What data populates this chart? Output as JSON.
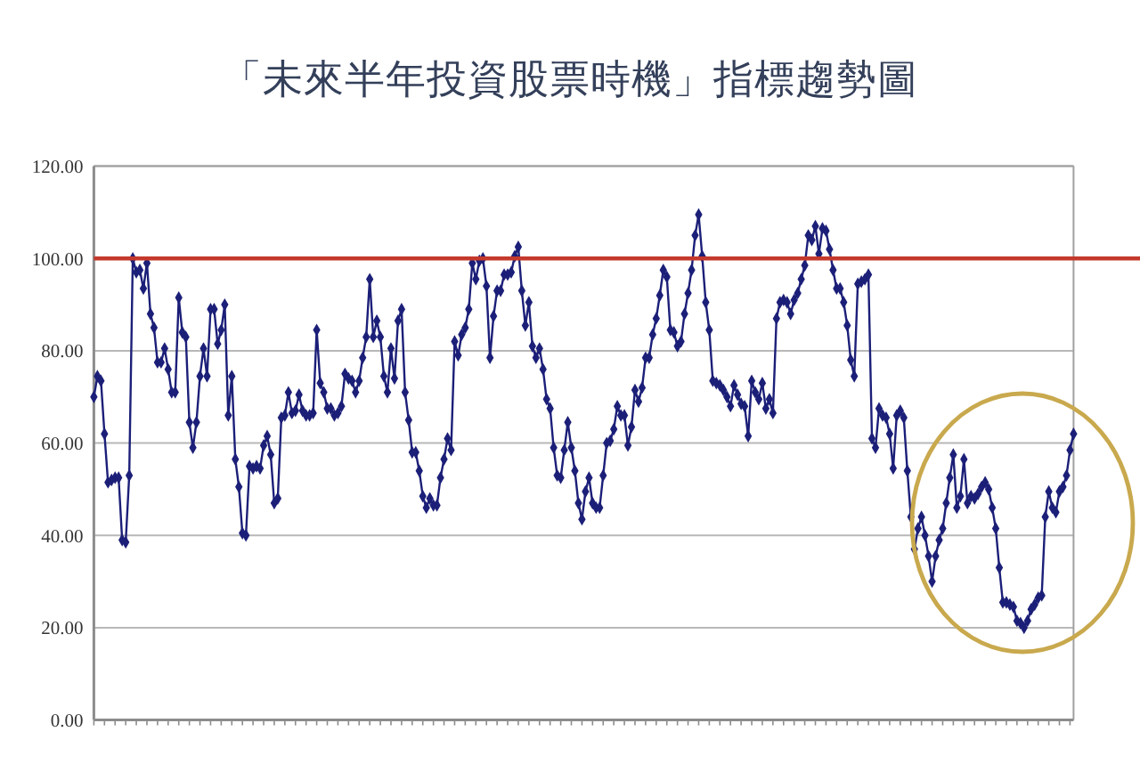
{
  "chart_data": {
    "type": "line",
    "title": "「未來半年投資股票時機」指標趨勢圖",
    "categories": [
      null,
      null,
      null,
      null,
      null,
      null,
      null,
      null,
      null,
      null,
      null,
      null,
      null,
      null,
      null,
      null,
      null,
      null,
      null,
      null,
      null,
      null,
      null,
      null,
      null,
      null,
      null,
      null,
      null,
      null,
      null,
      null,
      null,
      null,
      null,
      null,
      null,
      null,
      null,
      null,
      null,
      null,
      null,
      null,
      null,
      null,
      null,
      null,
      null,
      null,
      null,
      null,
      null,
      null,
      null,
      null,
      null,
      null,
      null,
      null,
      null,
      null,
      null,
      null,
      null,
      null,
      null,
      null,
      null,
      null,
      null,
      null,
      null,
      null,
      null,
      null,
      null,
      null,
      null,
      null,
      null,
      null,
      null,
      null,
      null,
      null,
      null,
      null,
      null,
      null,
      null,
      null,
      null,
      null,
      null,
      null,
      null,
      null,
      null,
      null,
      null,
      null,
      null,
      null,
      null,
      null,
      null,
      null,
      null,
      null,
      null,
      null,
      null,
      null,
      null,
      null,
      null,
      null,
      null,
      null,
      null,
      null,
      null,
      null,
      null,
      null,
      null,
      null,
      null,
      null,
      null,
      null,
      null,
      null,
      null,
      null,
      null,
      null,
      null,
      null,
      null,
      null,
      null,
      null,
      null,
      null,
      null,
      null,
      null,
      null,
      null,
      null,
      null,
      null,
      null,
      null,
      null,
      null,
      null,
      null,
      null,
      null,
      null,
      null,
      null,
      null,
      null,
      null,
      null,
      null,
      null,
      null,
      null,
      null,
      null,
      null,
      null,
      null,
      null,
      null,
      null,
      null,
      null,
      null,
      null,
      null,
      null,
      null,
      null,
      null,
      null,
      null,
      null,
      null,
      null,
      null,
      null,
      null,
      null,
      null,
      null,
      null,
      null,
      null,
      null,
      null,
      null,
      null,
      null,
      null,
      null,
      null,
      null,
      null,
      null,
      null,
      null,
      null,
      null,
      null,
      null,
      null,
      null,
      null,
      null,
      null,
      null,
      null,
      null,
      null,
      null,
      null,
      null,
      null,
      null,
      null,
      null,
      null,
      null,
      null,
      null,
      null,
      null,
      null,
      null,
      null,
      null,
      null,
      null,
      null,
      null,
      null,
      null,
      null,
      null,
      null,
      null,
      null,
      null,
      null,
      null,
      null,
      null,
      null,
      null,
      null,
      null,
      null,
      null,
      null,
      null,
      null,
      null,
      null,
      null,
      null,
      null,
      null
    ],
    "series": [
      {
        "color": "#1c1f78",
        "values": [
          70,
          74.5,
          73.5,
          62,
          51.5,
          52,
          52.5,
          52.5,
          39,
          38.5,
          53,
          100,
          97,
          97.5,
          93.5,
          99,
          88,
          85,
          77.5,
          77.5,
          80.5,
          76,
          71,
          71,
          91.5,
          84,
          83,
          64.5,
          59,
          64.5,
          74.5,
          80.5,
          74.5,
          89,
          89,
          81.5,
          84.5,
          90,
          66,
          74.5,
          56.5,
          50.5,
          40.5,
          40,
          55,
          54.5,
          55,
          54.5,
          59.5,
          61.5,
          57.5,
          47,
          48,
          65.5,
          66,
          71,
          66.5,
          67,
          70.5,
          67,
          66,
          66,
          66.5,
          84.5,
          73,
          71,
          67.5,
          67.5,
          66,
          66.5,
          68,
          75,
          74,
          73.5,
          71,
          73.5,
          78.5,
          83,
          95.5,
          83,
          86.5,
          83,
          74.5,
          71,
          80.5,
          74,
          86.5,
          89,
          71,
          65,
          58,
          58,
          54,
          48.5,
          46,
          48,
          46.5,
          46.5,
          52.5,
          56.5,
          61,
          58.5,
          82,
          79,
          83.5,
          85,
          89,
          99,
          95.5,
          99.5,
          100,
          94,
          78.5,
          87.5,
          93,
          93,
          96.5,
          96.5,
          97,
          100.5,
          102.5,
          93,
          85.5,
          90.5,
          81,
          78.5,
          80.5,
          76,
          69.5,
          67.5,
          59,
          53,
          52.5,
          58.5,
          64.5,
          59,
          54,
          47,
          43.5,
          49.5,
          52.5,
          47,
          46,
          46,
          53,
          60,
          60.5,
          63,
          68,
          66,
          66,
          59.5,
          63.5,
          71.5,
          69,
          72,
          78.5,
          78.5,
          83.5,
          87,
          92,
          97.5,
          96,
          84.5,
          84,
          81,
          82,
          88,
          92.5,
          97.5,
          105,
          109.5,
          100.5,
          90.5,
          84.5,
          73.5,
          73,
          72.5,
          71.5,
          70,
          68,
          72.5,
          70.5,
          68.5,
          68,
          61.5,
          73.5,
          71,
          69.5,
          73,
          67.5,
          69.5,
          66.5,
          87,
          90.5,
          91,
          90.5,
          88,
          91,
          92.5,
          95.5,
          98.5,
          105,
          104,
          107,
          101,
          106.5,
          106,
          102,
          97.5,
          93.5,
          93.5,
          90.5,
          85.5,
          78,
          74.5,
          94.5,
          95,
          95.5,
          96.5,
          61,
          59,
          67.5,
          66,
          65.5,
          62,
          54.5,
          66,
          67,
          65.5,
          54,
          44,
          37,
          41.5,
          44,
          40,
          35.5,
          30,
          35.5,
          39,
          41.5,
          47,
          52.5,
          57.5,
          46,
          48.5,
          56.5,
          47,
          48.5,
          48,
          49,
          50.5,
          51.5,
          50,
          46,
          41.5,
          33,
          25.5,
          25.5,
          25,
          24.5,
          21.5,
          21,
          20,
          21.5,
          24,
          25,
          26.5,
          27,
          44,
          49.5,
          46,
          45,
          49.5,
          50.5,
          53,
          58.5,
          62
        ]
      }
    ],
    "ylim": [
      0,
      120
    ],
    "yticks": [
      {
        "value": 0,
        "label": "0.00"
      },
      {
        "value": 20,
        "label": "20.00"
      },
      {
        "value": 40,
        "label": "40.00"
      },
      {
        "value": 60,
        "label": "60.00"
      },
      {
        "value": 80,
        "label": "80.00"
      },
      {
        "value": 100,
        "label": "100.00"
      },
      {
        "value": 120,
        "label": "120.00"
      }
    ],
    "grid": "y",
    "marker": "diamond",
    "ref_lines": [
      {
        "axis": "y",
        "value": 100,
        "color": "#c4392b"
      }
    ]
  }
}
